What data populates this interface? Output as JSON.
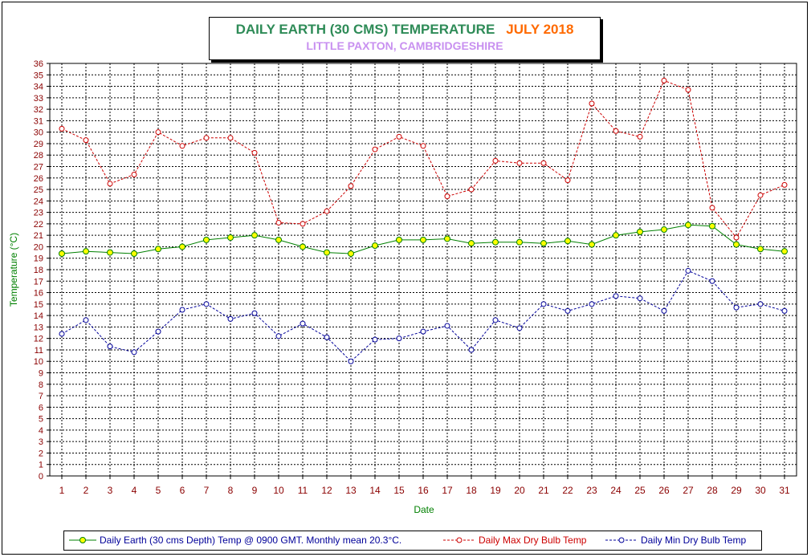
{
  "colors": {
    "earth": "#008000",
    "earth_marker": "#ffff00",
    "max": "#cc0000",
    "min": "#000099",
    "axis_text": "#8b0000",
    "axis_title": "#008000",
    "grid": "#000000"
  },
  "chart_data": {
    "type": "line",
    "title": "DAILY EARTH (30 CMS) TEMPERATURE",
    "title_month": "JULY 2018",
    "subtitle": "LITTLE PAXTON, CAMBRIDGESHIRE",
    "xlabel": "Date",
    "ylabel": "Temperature (°C)",
    "ylim": [
      0,
      36
    ],
    "ytick_step": 1,
    "grid": true,
    "legend_position": "bottom",
    "x": [
      1,
      2,
      3,
      4,
      5,
      6,
      7,
      8,
      9,
      10,
      11,
      12,
      13,
      14,
      15,
      16,
      17,
      18,
      19,
      20,
      21,
      22,
      23,
      24,
      25,
      26,
      27,
      28,
      29,
      30,
      31
    ],
    "series": [
      {
        "name": "Daily Earth (30 cms Depth) Temp @ 0900 GMT. Monthly mean 20.3°C.",
        "key": "earth",
        "style": "solid",
        "values": [
          19.4,
          19.6,
          19.5,
          19.4,
          19.8,
          20.0,
          20.6,
          20.8,
          21.0,
          20.6,
          20.0,
          19.5,
          19.4,
          20.1,
          20.6,
          20.6,
          20.7,
          20.3,
          20.4,
          20.4,
          20.3,
          20.5,
          20.2,
          21.0,
          21.3,
          21.5,
          21.9,
          21.8,
          20.2,
          19.8,
          19.6
        ]
      },
      {
        "name": "Daily Max Dry Bulb Temp",
        "key": "max",
        "style": "dashed",
        "values": [
          30.3,
          29.3,
          25.5,
          26.3,
          30.0,
          28.8,
          29.5,
          29.5,
          28.2,
          22.1,
          22.0,
          23.1,
          25.3,
          28.5,
          29.6,
          28.8,
          24.4,
          25.0,
          27.5,
          27.3,
          27.3,
          25.8,
          32.5,
          30.1,
          29.6,
          34.5,
          33.7,
          23.4,
          20.8,
          24.5,
          25.4
        ]
      },
      {
        "name": "Daily Min Dry Bulb Temp",
        "key": "min",
        "style": "dashed",
        "values": [
          12.4,
          13.6,
          11.3,
          10.8,
          12.6,
          14.5,
          15.0,
          13.7,
          14.2,
          12.2,
          13.3,
          12.1,
          10.0,
          11.9,
          12.0,
          12.6,
          13.1,
          11.0,
          13.6,
          12.9,
          15.0,
          14.4,
          15.0,
          15.7,
          15.5,
          14.4,
          17.9,
          17.0,
          14.7,
          15.0,
          14.4
        ]
      }
    ]
  }
}
